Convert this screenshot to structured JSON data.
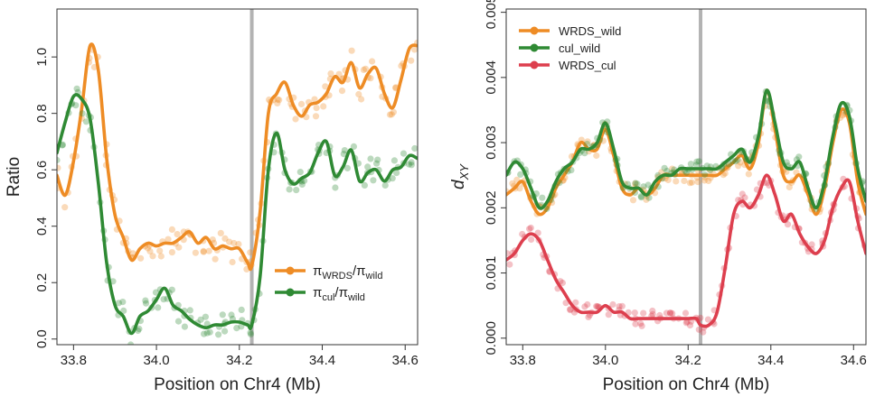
{
  "chart_data": [
    {
      "type": "line",
      "xlabel": "Position on Chr4 (Mb)",
      "ylabel": "Ratio",
      "xlim": [
        33.76,
        34.63
      ],
      "ylim": [
        -0.02,
        1.17
      ],
      "xticks": [
        "33.8",
        "34.0",
        "34.2",
        "34.4",
        "34.6"
      ],
      "yticks": [
        "0.0",
        "0.2",
        "0.4",
        "0.6",
        "0.8",
        "1.0"
      ],
      "vline_x": 34.23,
      "legend": {
        "position": "bottom-right",
        "entries": [
          {
            "base": "π",
            "sub": "WRDS",
            "sep": "/",
            "base2": "π",
            "sub2": "wild"
          },
          {
            "base": "π",
            "sub": "cul",
            "sep": "/",
            "base2": "π",
            "sub2": "wild"
          }
        ]
      },
      "series": [
        {
          "key": "pi_wrds",
          "color": "#ee8c25",
          "x": [
            33.76,
            33.78,
            33.8,
            33.82,
            33.84,
            33.86,
            33.88,
            33.9,
            33.92,
            33.94,
            33.96,
            33.98,
            34.0,
            34.02,
            34.04,
            34.06,
            34.08,
            34.1,
            34.12,
            34.14,
            34.16,
            34.18,
            34.2,
            34.22,
            34.23,
            34.25,
            34.27,
            34.29,
            34.31,
            34.33,
            34.35,
            34.37,
            34.39,
            34.41,
            34.43,
            34.45,
            34.47,
            34.49,
            34.51,
            34.53,
            34.55,
            34.57,
            34.59,
            34.61,
            34.63
          ],
          "values": [
            0.58,
            0.51,
            0.63,
            0.82,
            1.04,
            0.95,
            0.64,
            0.44,
            0.36,
            0.28,
            0.32,
            0.34,
            0.33,
            0.34,
            0.34,
            0.36,
            0.38,
            0.34,
            0.36,
            0.32,
            0.33,
            0.32,
            0.32,
            0.27,
            0.26,
            0.45,
            0.8,
            0.87,
            0.91,
            0.83,
            0.79,
            0.83,
            0.84,
            0.87,
            0.93,
            0.91,
            0.98,
            0.89,
            0.94,
            0.96,
            0.87,
            0.82,
            0.92,
            1.03,
            1.04
          ]
        },
        {
          "key": "pi_cul",
          "color": "#2f8a34",
          "x": [
            33.76,
            33.78,
            33.8,
            33.82,
            33.84,
            33.86,
            33.88,
            33.9,
            33.92,
            33.94,
            33.96,
            33.98,
            34.0,
            34.02,
            34.04,
            34.06,
            34.08,
            34.1,
            34.12,
            34.14,
            34.16,
            34.18,
            34.2,
            34.22,
            34.23,
            34.25,
            34.27,
            34.29,
            34.31,
            34.33,
            34.35,
            34.37,
            34.39,
            34.41,
            34.43,
            34.45,
            34.47,
            34.49,
            34.51,
            34.53,
            34.55,
            34.57,
            34.59,
            34.61,
            34.63
          ],
          "values": [
            0.66,
            0.77,
            0.86,
            0.85,
            0.78,
            0.55,
            0.27,
            0.12,
            0.08,
            0.02,
            0.08,
            0.1,
            0.14,
            0.18,
            0.12,
            0.1,
            0.07,
            0.05,
            0.04,
            0.05,
            0.05,
            0.06,
            0.06,
            0.05,
            0.05,
            0.22,
            0.6,
            0.73,
            0.6,
            0.55,
            0.57,
            0.59,
            0.66,
            0.7,
            0.58,
            0.61,
            0.67,
            0.56,
            0.59,
            0.6,
            0.56,
            0.6,
            0.61,
            0.65,
            0.64
          ]
        }
      ]
    },
    {
      "type": "line",
      "xlabel": "Position on Chr4 (Mb)",
      "ylabel": "d",
      "ylabel_sub": "XY",
      "xlim": [
        33.76,
        34.63
      ],
      "ylim": [
        -0.0001,
        0.00505
      ],
      "xticks": [
        "33.8",
        "34.0",
        "34.2",
        "34.4",
        "34.6"
      ],
      "yticks": [
        "0.000",
        "0.001",
        "0.002",
        "0.003",
        "0.004",
        "0.005"
      ],
      "vline_x": 34.23,
      "legend": {
        "position": "top-left",
        "entries": [
          "WRDS_wild",
          "cul_wild",
          "WRDS_cul"
        ]
      },
      "series": [
        {
          "name": "WRDS_wild",
          "color": "#ee8c25",
          "x": [
            33.76,
            33.78,
            33.8,
            33.82,
            33.84,
            33.86,
            33.88,
            33.9,
            33.92,
            33.94,
            33.96,
            33.98,
            34.0,
            34.02,
            34.04,
            34.06,
            34.08,
            34.1,
            34.12,
            34.14,
            34.16,
            34.18,
            34.2,
            34.22,
            34.23,
            34.25,
            34.27,
            34.29,
            34.31,
            34.33,
            34.35,
            34.37,
            34.39,
            34.41,
            34.43,
            34.45,
            34.47,
            34.49,
            34.51,
            34.53,
            34.55,
            34.57,
            34.59,
            34.61,
            34.63
          ],
          "values": [
            0.0022,
            0.0023,
            0.0024,
            0.0021,
            0.0019,
            0.002,
            0.0023,
            0.0025,
            0.0027,
            0.003,
            0.0029,
            0.0029,
            0.0032,
            0.0028,
            0.0023,
            0.0022,
            0.0023,
            0.0022,
            0.0023,
            0.0025,
            0.0025,
            0.0025,
            0.0025,
            0.0025,
            0.0025,
            0.0025,
            0.0025,
            0.0026,
            0.0027,
            0.0028,
            0.0026,
            0.003,
            0.0038,
            0.0032,
            0.0025,
            0.0024,
            0.0025,
            0.0022,
            0.0019,
            0.0023,
            0.003,
            0.0035,
            0.0033,
            0.0024,
            0.0019
          ]
        },
        {
          "name": "cul_wild",
          "color": "#2f8a34",
          "x": [
            33.76,
            33.78,
            33.8,
            33.82,
            33.84,
            33.86,
            33.88,
            33.9,
            33.92,
            33.94,
            33.96,
            33.98,
            34.0,
            34.02,
            34.04,
            34.06,
            34.08,
            34.1,
            34.12,
            34.14,
            34.16,
            34.18,
            34.2,
            34.22,
            34.23,
            34.25,
            34.27,
            34.29,
            34.31,
            34.33,
            34.35,
            34.37,
            34.39,
            34.41,
            34.43,
            34.45,
            34.47,
            34.49,
            34.51,
            34.53,
            34.55,
            34.57,
            34.59,
            34.61,
            34.63
          ],
          "values": [
            0.0025,
            0.0027,
            0.0026,
            0.0023,
            0.002,
            0.0021,
            0.0024,
            0.0026,
            0.0027,
            0.0029,
            0.0029,
            0.003,
            0.0033,
            0.0029,
            0.0024,
            0.0023,
            0.0023,
            0.0022,
            0.0024,
            0.0025,
            0.0025,
            0.0026,
            0.0026,
            0.0026,
            0.0026,
            0.0026,
            0.0026,
            0.0027,
            0.0028,
            0.0029,
            0.0027,
            0.0031,
            0.0038,
            0.0033,
            0.0027,
            0.0026,
            0.0027,
            0.0023,
            0.002,
            0.0024,
            0.0031,
            0.0036,
            0.0034,
            0.0026,
            0.0021
          ]
        },
        {
          "name": "WRDS_cul",
          "color": "#dd3f4e",
          "x": [
            33.76,
            33.78,
            33.8,
            33.82,
            33.84,
            33.86,
            33.88,
            33.9,
            33.92,
            33.94,
            33.96,
            33.98,
            34.0,
            34.02,
            34.04,
            34.06,
            34.08,
            34.1,
            34.12,
            34.14,
            34.16,
            34.18,
            34.2,
            34.22,
            34.23,
            34.25,
            34.27,
            34.29,
            34.31,
            34.33,
            34.35,
            34.37,
            34.39,
            34.41,
            34.43,
            34.45,
            34.47,
            34.49,
            34.51,
            34.53,
            34.55,
            34.57,
            34.59,
            34.61,
            34.63
          ],
          "values": [
            0.0012,
            0.0013,
            0.0015,
            0.0016,
            0.0015,
            0.0012,
            0.0009,
            0.0007,
            0.0005,
            0.0004,
            0.0004,
            0.0004,
            0.0005,
            0.0004,
            0.0004,
            0.0003,
            0.0003,
            0.0003,
            0.0003,
            0.0003,
            0.0003,
            0.0003,
            0.0003,
            0.0003,
            0.0002,
            0.0002,
            0.0004,
            0.0011,
            0.0019,
            0.0021,
            0.002,
            0.0022,
            0.0025,
            0.0022,
            0.0018,
            0.0019,
            0.0016,
            0.0014,
            0.0013,
            0.0015,
            0.002,
            0.0023,
            0.0024,
            0.0018,
            0.0013
          ]
        }
      ]
    }
  ]
}
